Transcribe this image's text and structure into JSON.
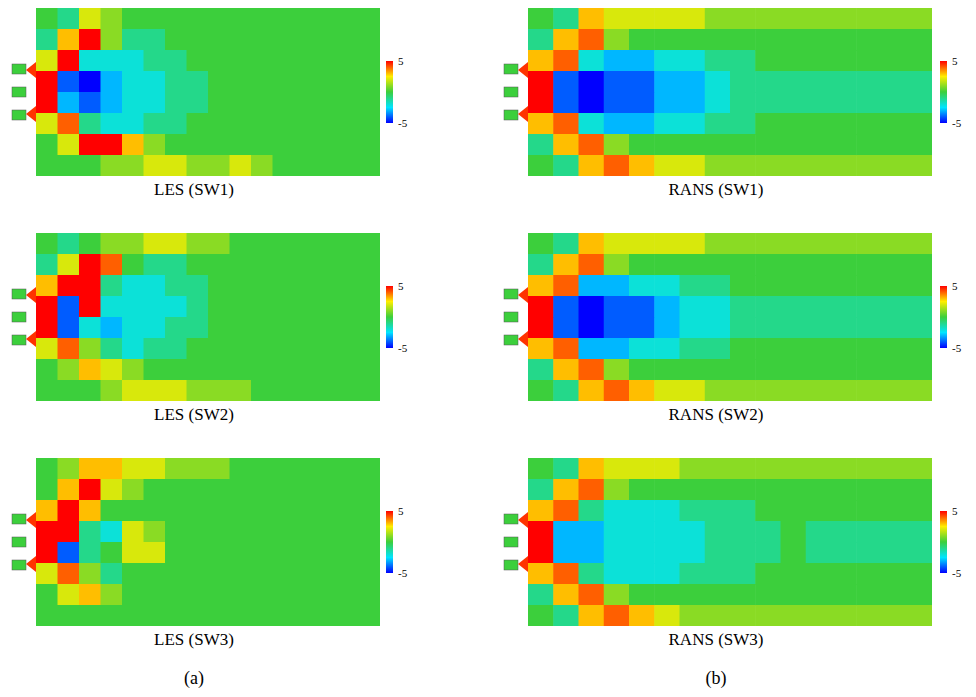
{
  "chart_data": [
    {
      "type": "heatmap",
      "title": "LES (SW1)",
      "tick_labels": false,
      "colorbar_range": [
        -5,
        5
      ],
      "colorbar_ticks": [
        5,
        -5
      ],
      "cells": [
        [
          0,
          -1,
          2,
          1,
          0,
          0,
          0,
          0,
          0,
          0,
          0,
          0,
          0,
          0,
          0,
          0
        ],
        [
          -1,
          3,
          5,
          1,
          -1,
          -1,
          0,
          0,
          0,
          0,
          0,
          0,
          0,
          0,
          0,
          0
        ],
        [
          2,
          5,
          -2,
          -2,
          -2,
          -1,
          -1,
          0,
          0,
          0,
          0,
          0,
          0,
          0,
          0,
          0
        ],
        [
          5,
          -4,
          -5,
          -3,
          -2,
          -2,
          -1,
          -1,
          0,
          0,
          0,
          0,
          0,
          0,
          0,
          0
        ],
        [
          5,
          -3,
          -4,
          -3,
          -2,
          -2,
          -1,
          -1,
          0,
          0,
          0,
          0,
          0,
          0,
          0,
          0
        ],
        [
          2,
          4,
          -1,
          -2,
          -2,
          -1,
          -1,
          0,
          0,
          0,
          0,
          0,
          0,
          0,
          0,
          0
        ],
        [
          0,
          2,
          5,
          5,
          3,
          1,
          0,
          0,
          0,
          0,
          0,
          0,
          0,
          0,
          0,
          0
        ],
        [
          0,
          0,
          0,
          1,
          1,
          2,
          2,
          1,
          1,
          2,
          1,
          0,
          0,
          0,
          0,
          0
        ]
      ]
    },
    {
      "type": "heatmap",
      "title": "RANS (SW1)",
      "tick_labels": false,
      "colorbar_range": [
        -5,
        5
      ],
      "colorbar_ticks": [
        5,
        -5
      ],
      "cells": [
        [
          0,
          -1,
          3,
          2,
          2,
          2,
          2,
          1,
          1,
          1,
          1,
          1,
          1,
          1,
          1,
          1
        ],
        [
          -1,
          3,
          4,
          1,
          0,
          0,
          0,
          0,
          0,
          0,
          0,
          0,
          0,
          0,
          0,
          0
        ],
        [
          3,
          4,
          -2,
          -3,
          -3,
          -2,
          -2,
          -1,
          -1,
          0,
          0,
          0,
          0,
          0,
          0,
          0
        ],
        [
          5,
          -4,
          -5,
          -4,
          -4,
          -3,
          -3,
          -2,
          -1,
          -1,
          -1,
          -1,
          -1,
          -1,
          -1,
          -1
        ],
        [
          5,
          -4,
          -5,
          -4,
          -4,
          -3,
          -3,
          -2,
          -1,
          -1,
          -1,
          -1,
          -1,
          -1,
          -1,
          -1
        ],
        [
          3,
          4,
          -2,
          -3,
          -3,
          -2,
          -2,
          -1,
          -1,
          0,
          0,
          0,
          0,
          0,
          0,
          0
        ],
        [
          -1,
          3,
          4,
          1,
          0,
          0,
          0,
          0,
          0,
          0,
          0,
          0,
          0,
          0,
          0,
          0
        ],
        [
          0,
          -1,
          3,
          4,
          3,
          2,
          2,
          1,
          1,
          1,
          1,
          1,
          1,
          1,
          1,
          1
        ]
      ]
    },
    {
      "type": "heatmap",
      "title": "LES (SW2)",
      "tick_labels": false,
      "colorbar_range": [
        -5,
        5
      ],
      "colorbar_ticks": [
        5,
        -5
      ],
      "cells": [
        [
          0,
          -1,
          0,
          1,
          1,
          2,
          2,
          1,
          1,
          0,
          0,
          0,
          0,
          0,
          0,
          0
        ],
        [
          -1,
          2,
          5,
          4,
          0,
          -1,
          -1,
          0,
          0,
          0,
          0,
          0,
          0,
          0,
          0,
          0
        ],
        [
          3,
          5,
          5,
          -1,
          -2,
          -2,
          -1,
          -1,
          0,
          0,
          0,
          0,
          0,
          0,
          0,
          0
        ],
        [
          5,
          -4,
          5,
          -2,
          -2,
          -2,
          -2,
          -1,
          0,
          0,
          0,
          0,
          0,
          0,
          0,
          0
        ],
        [
          5,
          -4,
          -2,
          -3,
          -2,
          -2,
          -1,
          -1,
          0,
          0,
          0,
          0,
          0,
          0,
          0,
          0
        ],
        [
          2,
          4,
          1,
          -1,
          -2,
          -1,
          -1,
          0,
          0,
          0,
          0,
          0,
          0,
          0,
          0,
          0
        ],
        [
          0,
          1,
          3,
          2,
          1,
          0,
          0,
          0,
          0,
          0,
          0,
          0,
          0,
          0,
          0,
          0
        ],
        [
          0,
          0,
          0,
          1,
          2,
          2,
          2,
          1,
          1,
          1,
          0,
          0,
          0,
          0,
          0,
          0
        ]
      ]
    },
    {
      "type": "heatmap",
      "title": "RANS (SW2)",
      "tick_labels": false,
      "colorbar_range": [
        -5,
        5
      ],
      "colorbar_ticks": [
        5,
        -5
      ],
      "cells": [
        [
          0,
          -1,
          3,
          2,
          2,
          2,
          2,
          1,
          1,
          1,
          1,
          1,
          1,
          1,
          1,
          1
        ],
        [
          -1,
          3,
          4,
          1,
          0,
          0,
          0,
          0,
          0,
          0,
          0,
          0,
          0,
          0,
          0,
          0
        ],
        [
          3,
          4,
          -3,
          -3,
          -2,
          -2,
          -1,
          -1,
          0,
          0,
          0,
          0,
          0,
          0,
          0,
          0
        ],
        [
          5,
          -4,
          -5,
          -4,
          -4,
          -3,
          -2,
          -2,
          -1,
          -1,
          -1,
          -1,
          -1,
          -1,
          -1,
          -1
        ],
        [
          5,
          -4,
          -5,
          -4,
          -4,
          -3,
          -2,
          -2,
          -1,
          -1,
          -1,
          -1,
          -1,
          -1,
          -1,
          -1
        ],
        [
          3,
          4,
          -3,
          -3,
          -2,
          -2,
          -1,
          -1,
          0,
          0,
          0,
          0,
          0,
          0,
          0,
          0
        ],
        [
          -1,
          3,
          4,
          1,
          0,
          0,
          0,
          0,
          0,
          0,
          0,
          0,
          0,
          0,
          0,
          0
        ],
        [
          0,
          -1,
          3,
          4,
          3,
          2,
          2,
          1,
          1,
          1,
          1,
          1,
          1,
          1,
          1,
          1
        ]
      ]
    },
    {
      "type": "heatmap",
      "title": "LES (SW3)",
      "tick_labels": false,
      "colorbar_range": [
        -5,
        5
      ],
      "colorbar_ticks": [
        5,
        -5
      ],
      "cells": [
        [
          0,
          1,
          3,
          3,
          2,
          2,
          1,
          1,
          1,
          0,
          0,
          0,
          0,
          0,
          0,
          0
        ],
        [
          0,
          3,
          5,
          2,
          1,
          0,
          0,
          0,
          0,
          0,
          0,
          0,
          0,
          0,
          0,
          0
        ],
        [
          3,
          5,
          3,
          0,
          0,
          0,
          0,
          0,
          0,
          0,
          0,
          0,
          0,
          0,
          0,
          0
        ],
        [
          5,
          5,
          -1,
          -2,
          2,
          1,
          0,
          0,
          0,
          0,
          0,
          0,
          0,
          0,
          0,
          0
        ],
        [
          5,
          -4,
          -1,
          0,
          2,
          2,
          0,
          0,
          0,
          0,
          0,
          0,
          0,
          0,
          0,
          0
        ],
        [
          2,
          4,
          1,
          -1,
          0,
          0,
          0,
          0,
          0,
          0,
          0,
          0,
          0,
          0,
          0,
          0
        ],
        [
          0,
          2,
          3,
          1,
          0,
          0,
          0,
          0,
          0,
          0,
          0,
          0,
          0,
          0,
          0,
          0
        ],
        [
          0,
          0,
          0,
          0,
          0,
          0,
          0,
          0,
          0,
          0,
          0,
          0,
          0,
          0,
          0,
          0
        ]
      ]
    },
    {
      "type": "heatmap",
      "title": "RANS (SW3)",
      "tick_labels": false,
      "colorbar_range": [
        -5,
        5
      ],
      "colorbar_ticks": [
        5,
        -5
      ],
      "cells": [
        [
          0,
          -1,
          3,
          2,
          2,
          2,
          1,
          1,
          1,
          1,
          1,
          1,
          1,
          1,
          1,
          1
        ],
        [
          -1,
          3,
          4,
          1,
          0,
          0,
          0,
          0,
          0,
          0,
          0,
          0,
          0,
          0,
          0,
          0
        ],
        [
          3,
          4,
          -1,
          -2,
          -2,
          -2,
          -1,
          -1,
          -1,
          0,
          0,
          0,
          0,
          0,
          0,
          0
        ],
        [
          5,
          -3,
          -3,
          -2,
          -2,
          -2,
          -2,
          -1,
          -1,
          -1,
          0,
          -1,
          -1,
          -1,
          -1,
          -1
        ],
        [
          5,
          -3,
          -3,
          -2,
          -2,
          -2,
          -2,
          -1,
          -1,
          -1,
          0,
          -1,
          -1,
          -1,
          -1,
          -1
        ],
        [
          3,
          4,
          -1,
          -2,
          -2,
          -2,
          -1,
          -1,
          -1,
          0,
          0,
          0,
          0,
          0,
          0,
          0
        ],
        [
          -1,
          3,
          4,
          1,
          0,
          0,
          0,
          0,
          0,
          0,
          0,
          0,
          0,
          0,
          0,
          0
        ],
        [
          0,
          -1,
          3,
          4,
          3,
          2,
          1,
          1,
          1,
          1,
          1,
          1,
          1,
          1,
          1,
          1
        ]
      ]
    }
  ],
  "figure_labels": [
    "(a)",
    "(b)"
  ]
}
